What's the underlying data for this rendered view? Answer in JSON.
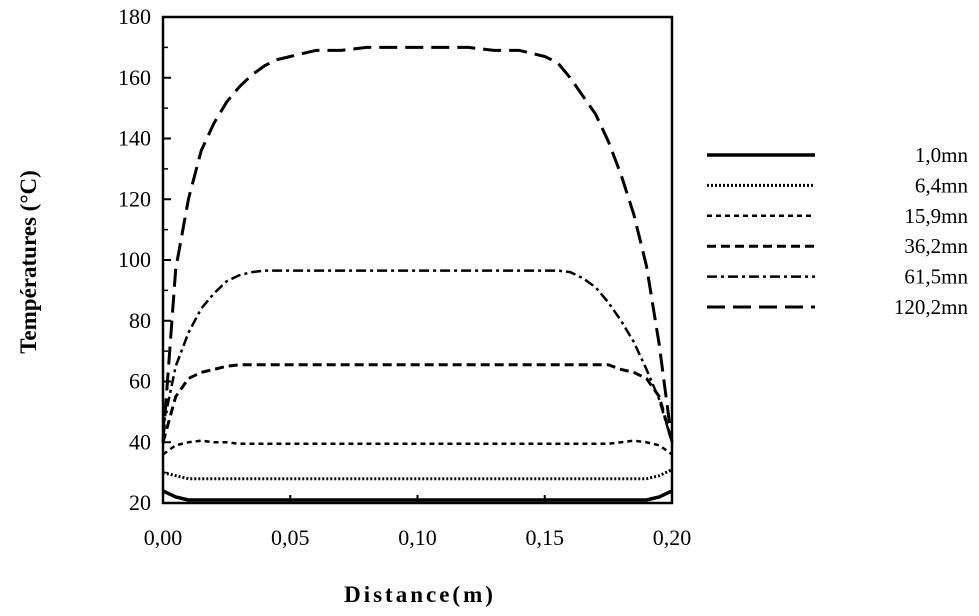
{
  "chart_data": {
    "type": "line",
    "title": "",
    "xlabel": "Distance(m)",
    "ylabel": "Températures (°C)",
    "xlim": [
      0.0,
      0.2
    ],
    "ylim": [
      20,
      180
    ],
    "x_ticks": [
      "0,00",
      "0,05",
      "0,10",
      "0,15",
      "0,20"
    ],
    "y_ticks": [
      "20",
      "40",
      "60",
      "80",
      "100",
      "120",
      "140",
      "160",
      "180"
    ],
    "grid": false,
    "legend_position": "right",
    "x": [
      0.0,
      0.005,
      0.01,
      0.015,
      0.02,
      0.025,
      0.03,
      0.035,
      0.04,
      0.045,
      0.05,
      0.055,
      0.06,
      0.07,
      0.08,
      0.09,
      0.1,
      0.11,
      0.12,
      0.13,
      0.14,
      0.145,
      0.15,
      0.155,
      0.16,
      0.165,
      0.17,
      0.175,
      0.18,
      0.185,
      0.19,
      0.195,
      0.2
    ],
    "series": [
      {
        "name": "1,0mn",
        "dash": "solid",
        "values": [
          24,
          22,
          21,
          21,
          21,
          21,
          21,
          21,
          21,
          21,
          21,
          21,
          21,
          21,
          21,
          21,
          21,
          21,
          21,
          21,
          21,
          21,
          21,
          21,
          21,
          21,
          21,
          21,
          21,
          21,
          21,
          22,
          24
        ]
      },
      {
        "name": "6,4mn",
        "dash": "dotted",
        "values": [
          30,
          29,
          28,
          28,
          28,
          28,
          28,
          28,
          28,
          28,
          28,
          28,
          28,
          28,
          28,
          28,
          28,
          28,
          28,
          28,
          28,
          28,
          28,
          28,
          28,
          28,
          28,
          28,
          28,
          28,
          28,
          29,
          31
        ]
      },
      {
        "name": "15,9mn",
        "dash": "short-dash",
        "values": [
          36,
          39,
          40,
          40.5,
          40,
          40,
          39.5,
          39.5,
          39.5,
          39.5,
          39.5,
          39.5,
          39.5,
          39.5,
          39.5,
          39.5,
          39.5,
          39.5,
          39.5,
          39.5,
          39.5,
          39.5,
          39.5,
          39.5,
          39.5,
          39.5,
          39.5,
          39.5,
          40,
          40.5,
          40,
          39,
          36
        ]
      },
      {
        "name": "36,2mn",
        "dash": "dash",
        "values": [
          40,
          55,
          61,
          63,
          64,
          65,
          65.5,
          65.5,
          65.5,
          65.5,
          65.5,
          65.5,
          65.5,
          65.5,
          65.5,
          65.5,
          65.5,
          65.5,
          65.5,
          65.5,
          65.5,
          65.5,
          65.5,
          65.5,
          65.5,
          65.5,
          65.5,
          65.5,
          64,
          63,
          61,
          55,
          40
        ]
      },
      {
        "name": "61,5mn",
        "dash": "dash-dot",
        "values": [
          45,
          65,
          76,
          84,
          89,
          93,
          95,
          96,
          96.5,
          96.5,
          96.5,
          96.5,
          96.5,
          96.5,
          96.5,
          96.5,
          96.5,
          96.5,
          96.5,
          96.5,
          96.5,
          96.5,
          96.5,
          96.5,
          96,
          94,
          91,
          86,
          80,
          73,
          64,
          54,
          40
        ]
      },
      {
        "name": "120,2mn",
        "dash": "long-dash",
        "values": [
          40,
          97,
          120,
          136,
          145,
          152,
          157,
          161,
          164,
          166,
          167,
          168,
          169,
          169,
          170,
          170,
          170,
          170,
          170,
          169,
          169,
          168,
          167,
          165,
          160,
          154,
          148,
          139,
          128,
          115,
          98,
          72,
          40
        ]
      }
    ]
  }
}
